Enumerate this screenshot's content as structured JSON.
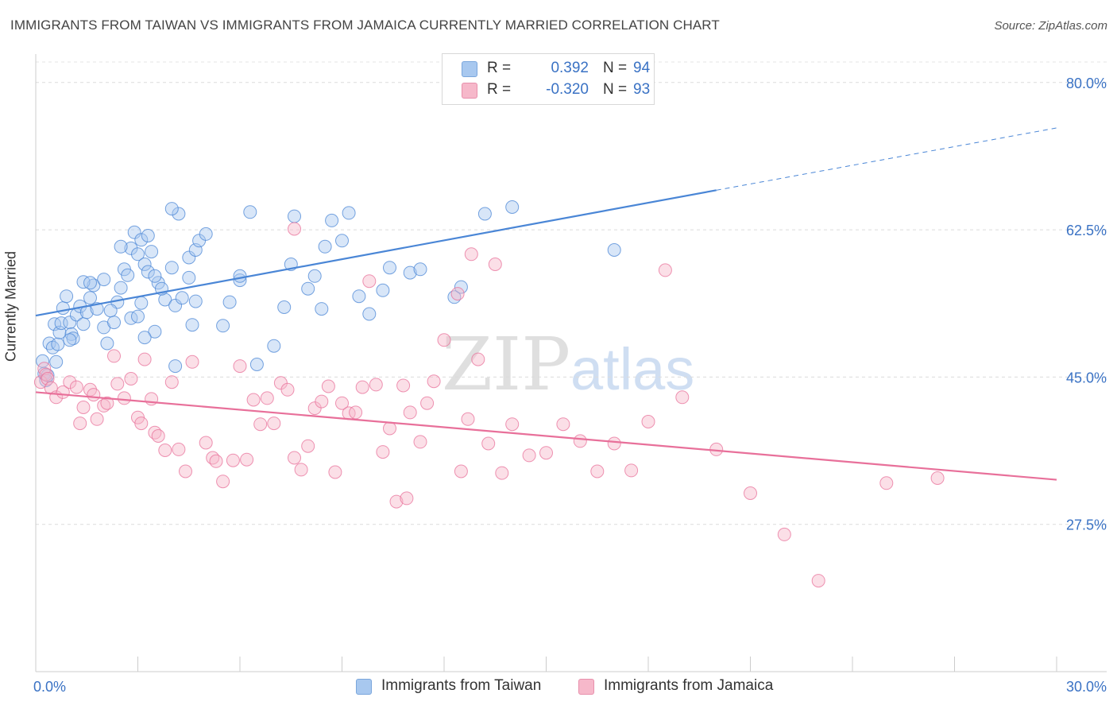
{
  "title": "IMMIGRANTS FROM TAIWAN VS IMMIGRANTS FROM JAMAICA CURRENTLY MARRIED CORRELATION CHART",
  "source": "Source: ZipAtlas.com",
  "watermark": {
    "zip": "ZIP",
    "atlas": "atlas"
  },
  "legend": [
    {
      "r_label": "R =",
      "r_value": "0.392",
      "n_label": "N =",
      "n_value": "94",
      "color": "#a8c8ef"
    },
    {
      "r_label": "R =",
      "r_value": "-0.320",
      "n_label": "N =",
      "n_value": "93",
      "color": "#f6b8ca"
    }
  ],
  "bottom_legend": [
    {
      "label": "Immigrants from Taiwan",
      "color": "#a8c8ef"
    },
    {
      "label": "Immigrants from Jamaica",
      "color": "#f6b8ca"
    }
  ],
  "chart_data": {
    "type": "scatter",
    "title": "IMMIGRANTS FROM TAIWAN VS IMMIGRANTS FROM JAMAICA CURRENTLY MARRIED CORRELATION CHART",
    "xlabel": "",
    "ylabel": "Currently Married",
    "xlim": [
      0,
      30
    ],
    "ylim": [
      10,
      83
    ],
    "x_tick_labels": [
      "0.0%",
      "30.0%"
    ],
    "y_ticks": [
      27.5,
      45.0,
      62.5,
      80.0
    ],
    "y_tick_labels": [
      "27.5%",
      "45.0%",
      "62.5%",
      "80.0%"
    ],
    "grid": true,
    "legend_position": "top-center",
    "series": [
      {
        "name": "Immigrants from Taiwan",
        "color": "#4a86d6",
        "fill": "#a8c8ef",
        "trend": {
          "x0": 0.0,
          "y0": 52.3,
          "x1": 20.0,
          "y1": 67.2,
          "dash_to_x": 30.0,
          "dash_to_y": 74.6
        },
        "points": [
          [
            0.2,
            46.9
          ],
          [
            0.25,
            45.4
          ],
          [
            0.3,
            44.6
          ],
          [
            0.35,
            45.2
          ],
          [
            0.4,
            49.0
          ],
          [
            0.5,
            48.5
          ],
          [
            0.55,
            51.3
          ],
          [
            0.6,
            46.8
          ],
          [
            0.65,
            48.9
          ],
          [
            0.7,
            50.3
          ],
          [
            0.75,
            51.4
          ],
          [
            0.8,
            53.2
          ],
          [
            0.9,
            54.6
          ],
          [
            1.0,
            51.5
          ],
          [
            1.05,
            50.1
          ],
          [
            1.1,
            49.6
          ],
          [
            1.2,
            52.4
          ],
          [
            1.3,
            53.4
          ],
          [
            1.4,
            51.3
          ],
          [
            1.5,
            52.7
          ],
          [
            1.6,
            54.4
          ],
          [
            1.7,
            55.9
          ],
          [
            1.8,
            53.1
          ],
          [
            2.0,
            50.9
          ],
          [
            2.1,
            49.0
          ],
          [
            2.3,
            51.5
          ],
          [
            2.4,
            53.9
          ],
          [
            2.5,
            55.6
          ],
          [
            2.6,
            57.8
          ],
          [
            2.7,
            57.1
          ],
          [
            2.8,
            60.3
          ],
          [
            2.9,
            62.2
          ],
          [
            3.0,
            59.6
          ],
          [
            3.1,
            61.3
          ],
          [
            3.2,
            58.4
          ],
          [
            3.3,
            61.8
          ],
          [
            3.4,
            59.9
          ],
          [
            3.6,
            56.2
          ],
          [
            3.8,
            54.2
          ],
          [
            4.0,
            58.0
          ],
          [
            4.2,
            64.4
          ],
          [
            4.5,
            59.2
          ],
          [
            4.7,
            60.1
          ],
          [
            4.8,
            61.2
          ],
          [
            5.0,
            62.0
          ],
          [
            1.4,
            56.3
          ],
          [
            2.0,
            56.6
          ],
          [
            1.6,
            56.2
          ],
          [
            2.5,
            60.5
          ],
          [
            1.0,
            49.4
          ],
          [
            2.2,
            52.9
          ],
          [
            2.8,
            52.0
          ],
          [
            3.0,
            52.2
          ],
          [
            3.1,
            53.8
          ],
          [
            3.3,
            57.5
          ],
          [
            3.5,
            57.0
          ],
          [
            3.7,
            55.5
          ],
          [
            4.1,
            53.5
          ],
          [
            4.3,
            54.4
          ],
          [
            4.5,
            56.8
          ],
          [
            4.7,
            54.0
          ],
          [
            4.6,
            51.2
          ],
          [
            3.5,
            50.4
          ],
          [
            3.2,
            49.7
          ],
          [
            5.5,
            51.1
          ],
          [
            5.7,
            53.9
          ],
          [
            6.0,
            56.5
          ],
          [
            6.3,
            64.6
          ],
          [
            7.0,
            48.7
          ],
          [
            7.3,
            53.3
          ],
          [
            7.5,
            58.4
          ],
          [
            7.6,
            64.1
          ],
          [
            8.0,
            55.5
          ],
          [
            8.2,
            57.0
          ],
          [
            8.5,
            60.5
          ],
          [
            8.7,
            63.6
          ],
          [
            8.4,
            53.1
          ],
          [
            9.0,
            61.2
          ],
          [
            9.2,
            64.5
          ],
          [
            9.5,
            54.6
          ],
          [
            9.8,
            52.5
          ],
          [
            10.2,
            55.3
          ],
          [
            10.4,
            58.0
          ],
          [
            11.0,
            57.4
          ],
          [
            11.3,
            57.8
          ],
          [
            12.3,
            54.5
          ],
          [
            12.5,
            55.7
          ],
          [
            4.0,
            65.0
          ],
          [
            4.1,
            46.3
          ],
          [
            6.5,
            46.5
          ],
          [
            6.0,
            57.0
          ],
          [
            13.2,
            64.4
          ],
          [
            14.0,
            65.2
          ],
          [
            17.0,
            60.1
          ]
        ]
      },
      {
        "name": "Immigrants from Jamaica",
        "color": "#e8709a",
        "fill": "#f6b8ca",
        "trend": {
          "x0": 0.0,
          "y0": 43.2,
          "x1": 30.0,
          "y1": 32.8
        },
        "points": [
          [
            0.15,
            44.4
          ],
          [
            0.25,
            46.0
          ],
          [
            0.3,
            45.3
          ],
          [
            0.35,
            44.8
          ],
          [
            0.45,
            43.7
          ],
          [
            0.6,
            42.6
          ],
          [
            0.8,
            43.2
          ],
          [
            1.0,
            44.4
          ],
          [
            1.2,
            43.8
          ],
          [
            1.3,
            39.5
          ],
          [
            1.4,
            41.4
          ],
          [
            1.6,
            43.5
          ],
          [
            1.7,
            42.9
          ],
          [
            1.8,
            40.0
          ],
          [
            2.0,
            41.6
          ],
          [
            2.1,
            41.9
          ],
          [
            2.3,
            47.5
          ],
          [
            2.4,
            44.2
          ],
          [
            2.6,
            42.5
          ],
          [
            2.8,
            44.8
          ],
          [
            3.0,
            40.2
          ],
          [
            3.1,
            39.5
          ],
          [
            3.2,
            47.1
          ],
          [
            3.4,
            42.4
          ],
          [
            3.5,
            38.4
          ],
          [
            3.6,
            38.0
          ],
          [
            3.8,
            36.3
          ],
          [
            4.0,
            44.4
          ],
          [
            4.2,
            36.4
          ],
          [
            4.4,
            33.8
          ],
          [
            4.6,
            46.8
          ],
          [
            5.0,
            37.2
          ],
          [
            5.2,
            35.4
          ],
          [
            5.3,
            35.0
          ],
          [
            5.5,
            32.6
          ],
          [
            5.8,
            35.1
          ],
          [
            6.0,
            46.3
          ],
          [
            6.2,
            35.2
          ],
          [
            6.4,
            42.3
          ],
          [
            6.6,
            39.4
          ],
          [
            6.8,
            42.5
          ],
          [
            7.0,
            39.5
          ],
          [
            7.2,
            44.3
          ],
          [
            7.4,
            43.5
          ],
          [
            7.6,
            35.4
          ],
          [
            7.8,
            34.0
          ],
          [
            8.0,
            36.8
          ],
          [
            8.2,
            41.3
          ],
          [
            8.4,
            42.1
          ],
          [
            8.6,
            43.9
          ],
          [
            8.8,
            33.7
          ],
          [
            9.0,
            41.9
          ],
          [
            9.2,
            40.7
          ],
          [
            9.4,
            40.8
          ],
          [
            9.6,
            43.8
          ],
          [
            10.0,
            44.1
          ],
          [
            10.2,
            36.1
          ],
          [
            10.4,
            38.9
          ],
          [
            10.6,
            30.2
          ],
          [
            10.8,
            44.0
          ],
          [
            11.0,
            40.8
          ],
          [
            11.3,
            37.3
          ],
          [
            11.5,
            41.9
          ],
          [
            11.7,
            44.5
          ],
          [
            12.0,
            49.4
          ],
          [
            12.5,
            33.8
          ],
          [
            12.7,
            40.0
          ],
          [
            13.0,
            47.1
          ],
          [
            13.3,
            37.1
          ],
          [
            13.7,
            33.6
          ],
          [
            14.0,
            39.4
          ],
          [
            14.5,
            35.7
          ],
          [
            15.0,
            36.0
          ],
          [
            15.5,
            39.4
          ],
          [
            16.0,
            37.4
          ],
          [
            16.5,
            33.8
          ],
          [
            17.0,
            37.1
          ],
          [
            17.5,
            33.9
          ],
          [
            18.0,
            39.7
          ],
          [
            19.0,
            42.6
          ],
          [
            20.0,
            36.4
          ],
          [
            21.0,
            31.2
          ],
          [
            22.0,
            26.3
          ],
          [
            23.0,
            20.8
          ],
          [
            25.0,
            32.4
          ],
          [
            9.8,
            56.4
          ],
          [
            12.4,
            54.9
          ],
          [
            12.8,
            59.6
          ],
          [
            13.5,
            58.4
          ],
          [
            18.5,
            57.7
          ],
          [
            10.9,
            30.6
          ],
          [
            7.6,
            62.6
          ],
          [
            26.5,
            33.0
          ]
        ]
      }
    ]
  }
}
